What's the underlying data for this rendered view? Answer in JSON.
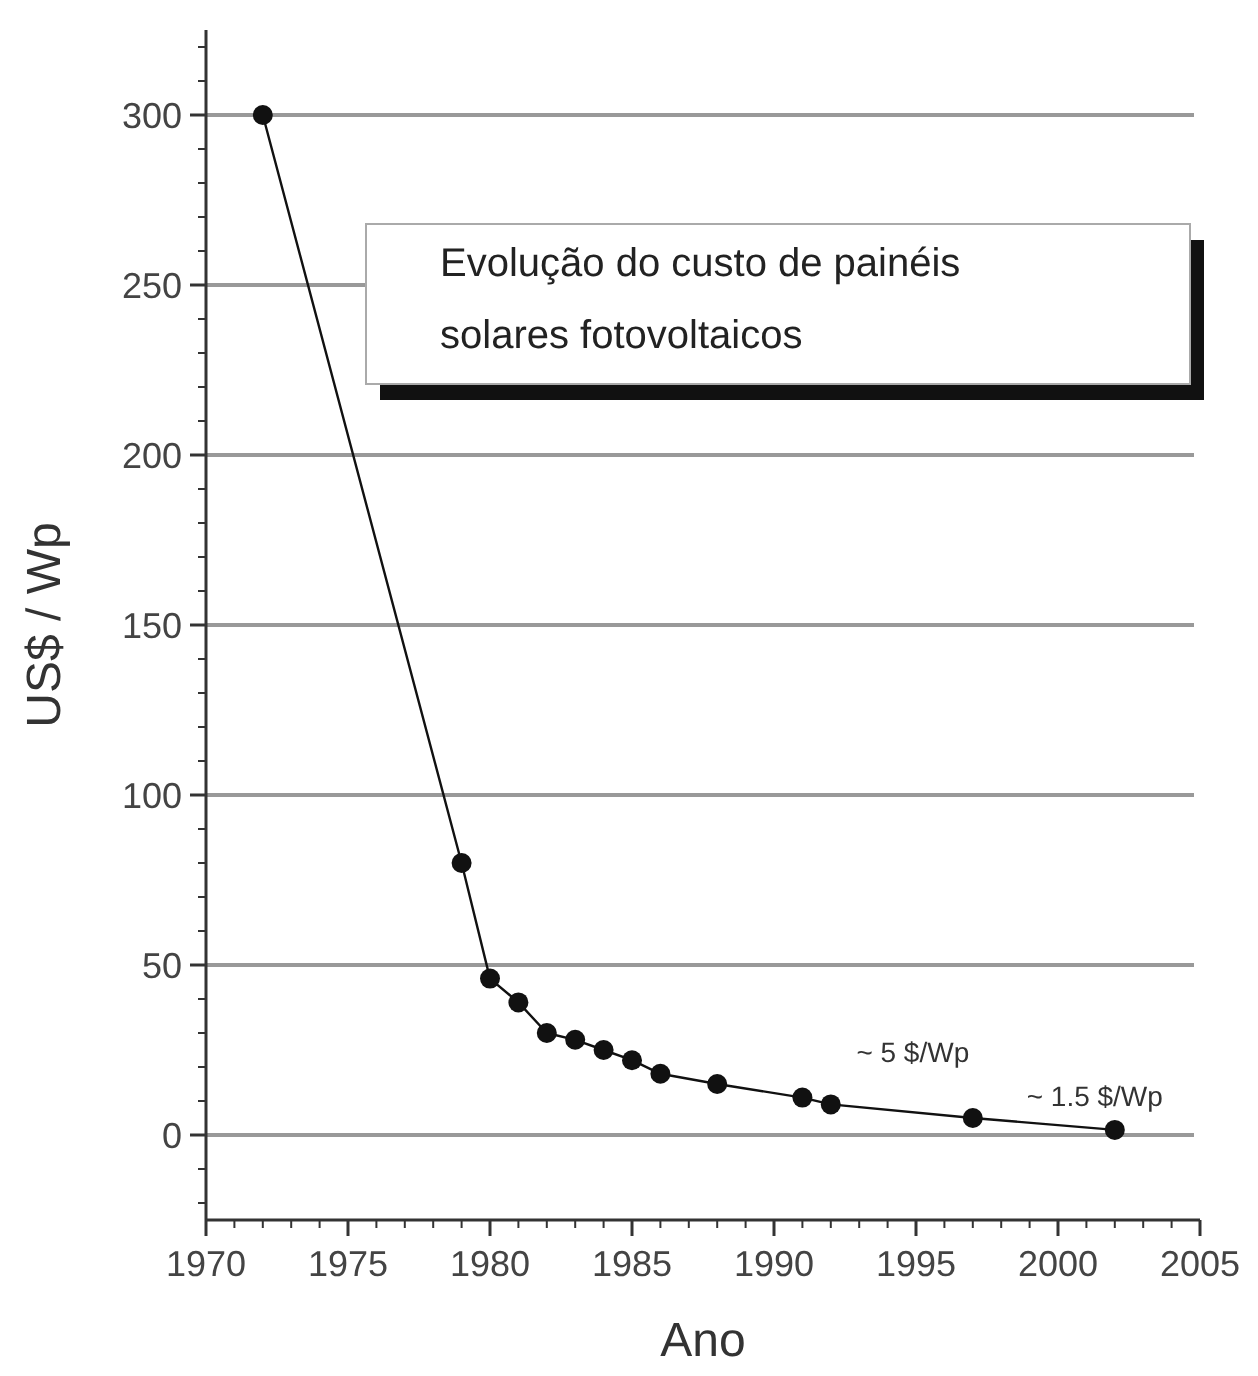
{
  "chart_data": {
    "type": "line",
    "title": "Evolução do custo de painéis solares fotovoltaicos",
    "xlabel": "Ano",
    "ylabel": "US$ / Wp",
    "x": [
      1972,
      1979,
      1980,
      1981,
      1982,
      1983,
      1984,
      1985,
      1986,
      1988,
      1991,
      1992,
      1997,
      2002
    ],
    "series": [
      {
        "color": "#111111",
        "values": [
          300,
          80,
          46,
          39,
          30,
          28,
          25,
          22,
          18,
          15,
          11,
          9,
          5,
          1.5
        ]
      }
    ],
    "xlim": [
      1970,
      2005
    ],
    "xticks": [
      1970,
      1975,
      1980,
      1985,
      1990,
      1995,
      2000,
      2005
    ],
    "ylim": [
      -25,
      325
    ],
    "yticks": [
      0,
      50,
      100,
      150,
      200,
      250,
      300
    ],
    "grid": "y",
    "marker": "circle",
    "line_style": "solid",
    "annotations": [
      {
        "text": "~ 5 $/Wp",
        "x": 1997,
        "y": 5
      },
      {
        "text": "~ 1.5 $/Wp",
        "x": 2002,
        "y": 1.5
      }
    ]
  }
}
